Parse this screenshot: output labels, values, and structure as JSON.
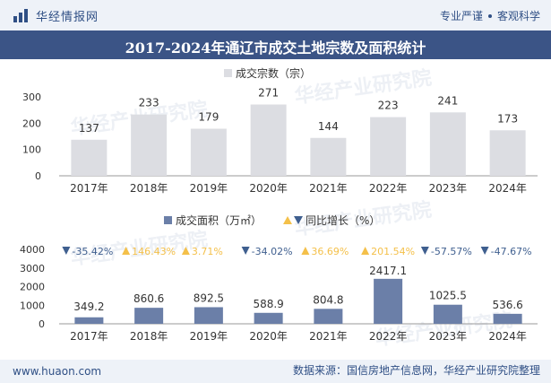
{
  "header": {
    "brand": "华经情报网",
    "tagline_left": "专业严谨",
    "tagline_right": "客观科学"
  },
  "title": "2017-2024年通辽市成交土地宗数及面积统计",
  "footer": {
    "site": "www.huaon.com",
    "source": "数据来源：国信房地产信息网，华经产业研究院整理"
  },
  "watermark": "华经产业研究院",
  "colors": {
    "bar_top": "#dcdde2",
    "bar_bottom": "#6b7fa8",
    "up": "#f4c04a",
    "down": "#3f5f8f",
    "brand": "#2f4f85",
    "titlebar": "#3b5486"
  },
  "chart_data": [
    {
      "type": "bar",
      "title": "",
      "categories": [
        "2017年",
        "2018年",
        "2019年",
        "2020年",
        "2021年",
        "2022年",
        "2023年",
        "2024年"
      ],
      "series": [
        {
          "name": "成交宗数（宗）",
          "values": [
            137,
            233,
            179,
            271,
            144,
            223,
            241,
            173
          ]
        }
      ],
      "yticks": [
        0,
        100,
        200,
        300
      ],
      "ylim": [
        0,
        300
      ],
      "legend": "top-center",
      "grid": false
    },
    {
      "type": "bar",
      "title": "",
      "categories": [
        "2017年",
        "2018年",
        "2019年",
        "2020年",
        "2021年",
        "2022年",
        "2023年",
        "2024年"
      ],
      "series": [
        {
          "name": "成交面积（万㎡）",
          "values": [
            349.2,
            860.6,
            892.5,
            588.9,
            804.8,
            2417.1,
            1025.5,
            536.6
          ]
        },
        {
          "name": "同比增长（%）",
          "values": [
            -35.42,
            146.43,
            3.71,
            -34.02,
            36.69,
            201.54,
            -57.57,
            -47.67
          ]
        }
      ],
      "growth_labels": [
        "-35.42%",
        "146.43%",
        "3.71%",
        "-34.02%",
        "36.69%",
        "201.54%",
        "-57.57%",
        "-47.67%"
      ],
      "area_labels": [
        "349.2",
        "860.6",
        "892.5",
        "588.9",
        "804.8",
        "2417.1",
        "1025.5",
        "536.6"
      ],
      "yticks": [
        0,
        1000,
        2000,
        3000,
        4000
      ],
      "ylim": [
        0,
        4000
      ],
      "legend": "top-center",
      "grid": false
    }
  ]
}
